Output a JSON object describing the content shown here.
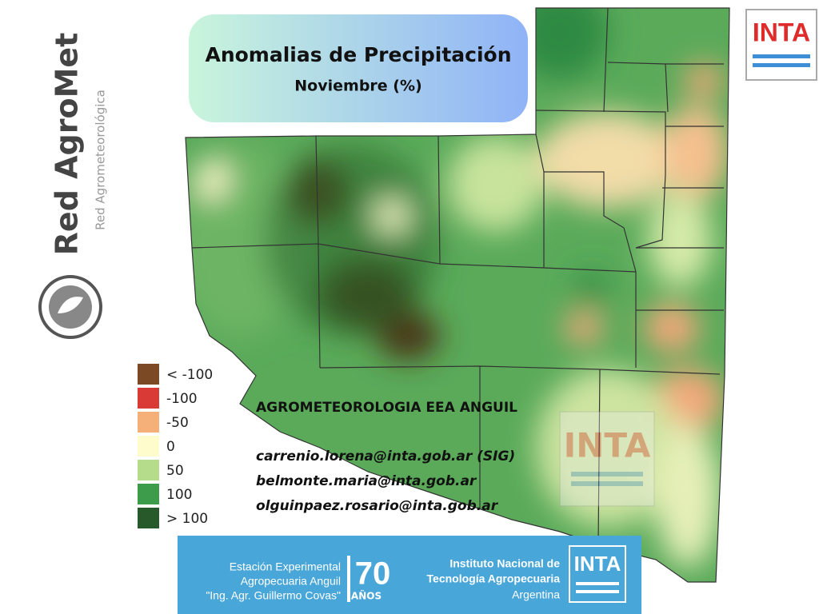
{
  "header": {
    "title": "Anomalias de Precipitación",
    "subtitle": "Noviembre (%)"
  },
  "legend": {
    "items": [
      {
        "label": "< -100",
        "color": "#7b4a24"
      },
      {
        "label": "-100",
        "color": "#d93a35"
      },
      {
        "label": "-50",
        "color": "#f5b07a"
      },
      {
        "label": "0",
        "color": "#fefccc"
      },
      {
        "label": "50",
        "color": "#b5dc8a"
      },
      {
        "label": "100",
        "color": "#3c9c4b"
      },
      {
        "label": "> 100",
        "color": "#27592a"
      }
    ]
  },
  "contact": {
    "heading": "AGROMETEOROLOGIA EEA ANGUIL",
    "emails": [
      "carrenio.lorena@inta.gob.ar (SIG)",
      "belmonte.maria@inta.gob.ar",
      "olguinpaez.rosario@inta.gob.ar"
    ]
  },
  "branding": {
    "network": "Red AgroMet",
    "network_sub": "Red Agrometeorológica",
    "inta": "INTA"
  },
  "footer": {
    "station": [
      "Estación Experimental",
      "Agropecuaria Anguil",
      "\"Ing. Agr. Guillermo Covas\""
    ],
    "anniversary": "70",
    "anniversary_label": "AÑOS",
    "institute": [
      "Instituto Nacional de",
      "Tecnología Agropecuaria",
      "Argentina"
    ]
  }
}
